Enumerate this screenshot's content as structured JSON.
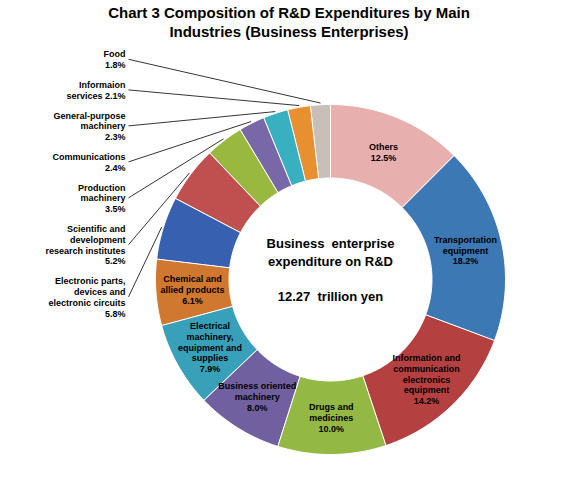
{
  "chart_data": {
    "type": "pie",
    "title": "Chart 3 Composition of R&D Expenditures by Main\nIndustries (Business Enterprises)",
    "annotations": [
      "Business  enterprise\nexpenditure on R&D\n\n12.27  trillion yen"
    ],
    "categories": [
      "Others\n12.5%",
      "Transportation\nequipment\n18.2%",
      "Information and\ncommunication\nelectronics\nequipment\n14.2%",
      "Drugs and\nmedicines\n10.0%",
      "Business oriented\nmachinery\n8.0%",
      "Electrical\nmachinery,\nequipment and\nsupplies\n7.9%",
      "Chemical and\nallied products\n6.1%",
      "Electronic parts,\ndevices and\nelectronic circuits\n5.8%",
      "Scientific and\ndevelopment\nresearch institutes\n5.2%",
      "Production\nmachinery\n3.5%",
      "Communications\n2.4%",
      "General-purpose\nmachinery\n2.3%",
      "Informaion\nservices 2.1%",
      "Food\n1.8%"
    ],
    "values": [
      12.5,
      18.2,
      14.2,
      10.0,
      8.0,
      7.9,
      6.1,
      5.8,
      5.2,
      3.5,
      2.4,
      2.3,
      2.1,
      1.8
    ],
    "colors": [
      "#E8AFAF",
      "#3C78B4",
      "#B54040",
      "#93B944",
      "#7060A0",
      "#38A0B8",
      "#D07830",
      "#3860B0",
      "#C05050",
      "#98B840",
      "#7868A8",
      "#38B0C0",
      "#E89030",
      "#C8C0B8"
    ],
    "data_labels": true
  }
}
